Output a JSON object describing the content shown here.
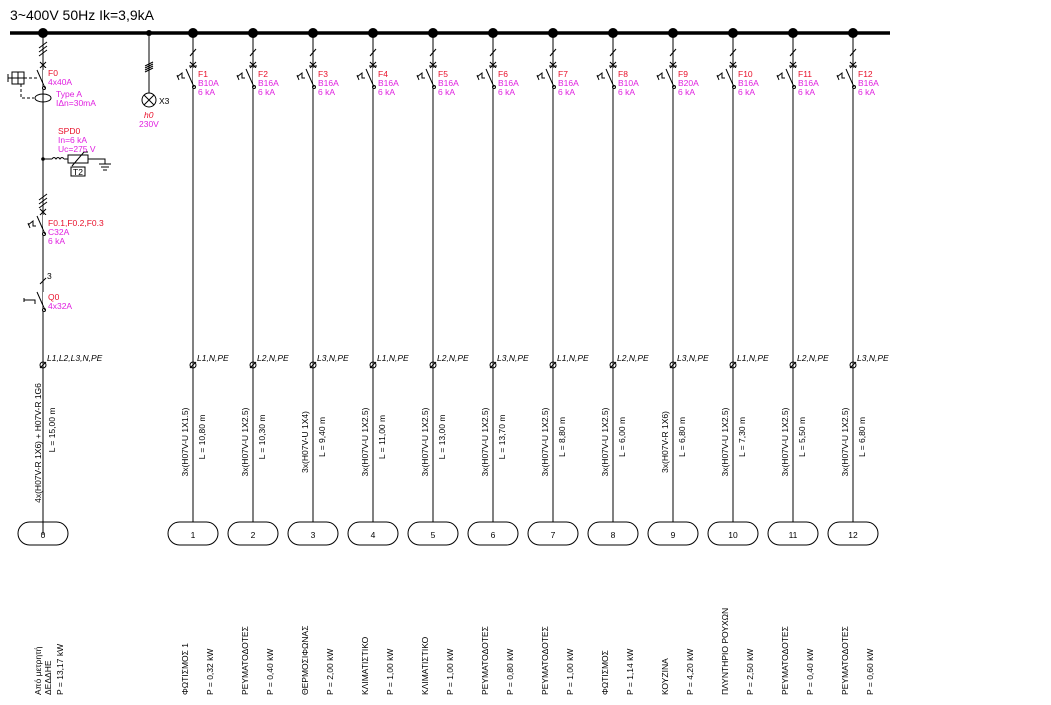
{
  "title": "3~400V 50Hz Ik=3,9kA",
  "colors": {
    "label_red": "#e8102a",
    "rating_magenta": "#e020e0",
    "line": "#000000"
  },
  "main_feeder": {
    "breaker_id": "F0",
    "breaker_rating": "4x40A",
    "rcd_type": "Type A",
    "rcd_sensitivity": "IΔn=30mA",
    "spd_id": "SPD0",
    "spd_in": "In=6 kA",
    "spd_uc": "Uc=275 V",
    "spd_class": "T2",
    "mcb_ids": "F0.1,F0.2,F0.3",
    "mcb_rating": "C32A",
    "mcb_ik": "6 kA",
    "poles": "3",
    "switch_id": "Q0",
    "switch_rating": "4x32A",
    "phases": "L1,L2,L3,N,PE",
    "cable": "4x(H07V-R 1X6) + H07V-R 1G6",
    "length": "L = 15,00 m",
    "number": "0",
    "description": [
      "Από μετρητή",
      "ΔΕΔΔΗΕ",
      "P = 13,17 kW"
    ]
  },
  "indicator": {
    "ref": "X3",
    "id": "h0",
    "voltage": "230V"
  },
  "circuits": [
    {
      "id": "F1",
      "rating": "B10A",
      "ik": "6 kA",
      "phases": "L1,N,PE",
      "cable": "3x(H07V-U 1X1.5)",
      "length": "L = 10,80 m",
      "number": "1",
      "description": "ΦΩΤΙΣΜΟΣ 1",
      "power": "P = 0,32 kW"
    },
    {
      "id": "F2",
      "rating": "B16A",
      "ik": "6 kA",
      "phases": "L2,N,PE",
      "cable": "3x(H07V-U 1X2.5)",
      "length": "L = 10,30 m",
      "number": "2",
      "description": "ΡΕΥΜΑΤΟΔΟΤΕΣ",
      "power": "P = 0,40 kW"
    },
    {
      "id": "F3",
      "rating": "B16A",
      "ik": "6 kA",
      "phases": "L3,N,PE",
      "cable": "3x(H07V-U 1X4)",
      "length": "L = 9,40 m",
      "number": "3",
      "description": "ΘΕΡΜΟΣΙΦΩΝΑΣ",
      "power": "P = 2,00 kW"
    },
    {
      "id": "F4",
      "rating": "B16A",
      "ik": "6 kA",
      "phases": "L1,N,PE",
      "cable": "3x(H07V-U 1X2.5)",
      "length": "L = 11,00 m",
      "number": "4",
      "description": "ΚΛΙΜΑΤΙΣΤΙΚΟ",
      "power": "P = 1,00 kW"
    },
    {
      "id": "F5",
      "rating": "B16A",
      "ik": "6 kA",
      "phases": "L2,N,PE",
      "cable": "3x(H07V-U 1X2.5)",
      "length": "L = 13,00 m",
      "number": "5",
      "description": "ΚΛΙΜΑΤΙΣΤΙΚΟ",
      "power": "P = 1,00 kW"
    },
    {
      "id": "F6",
      "rating": "B16A",
      "ik": "6 kA",
      "phases": "L3,N,PE",
      "cable": "3x(H07V-U 1X2.5)",
      "length": "L = 13,70 m",
      "number": "6",
      "description": "ΡΕΥΜΑΤΟΔΟΤΕΣ",
      "power": "P = 0,80 kW"
    },
    {
      "id": "F7",
      "rating": "B16A",
      "ik": "6 kA",
      "phases": "L1,N,PE",
      "cable": "3x(H07V-U 1X2.5)",
      "length": "L = 8,80 m",
      "number": "7",
      "description": "ΡΕΥΜΑΤΟΔΟΤΕΣ",
      "power": "P = 1,00 kW"
    },
    {
      "id": "F8",
      "rating": "B10A",
      "ik": "6 kA",
      "phases": "L2,N,PE",
      "cable": "3x(H07V-U 1X2.5)",
      "length": "L = 6,00 m",
      "number": "8",
      "description": "ΦΩΤΙΣΜΟΣ",
      "power": "P = 1,14 kW"
    },
    {
      "id": "F9",
      "rating": "B20A",
      "ik": "6 kA",
      "phases": "L3,N,PE",
      "cable": "3x(H07V-R 1X6)",
      "length": "L = 6,80 m",
      "number": "9",
      "description": "ΚΟΥΖΙΝΑ",
      "power": "P = 4,20 kW"
    },
    {
      "id": "F10",
      "rating": "B16A",
      "ik": "6 kA",
      "phases": "L1,N,PE",
      "cable": "3x(H07V-U 1X2.5)",
      "length": "L = 7,30 m",
      "number": "10",
      "description": "ΠΛΥΝΤΗΡΙΟ ΡΟΥΧΩΝ",
      "power": "P = 2,50 kW"
    },
    {
      "id": "F11",
      "rating": "B16A",
      "ik": "6 kA",
      "phases": "L2,N,PE",
      "cable": "3x(H07V-U 1X2.5)",
      "length": "L = 5,50 m",
      "number": "11",
      "description": "ΡΕΥΜΑΤΟΔΟΤΕΣ",
      "power": "P = 0,40 kW"
    },
    {
      "id": "F12",
      "rating": "B16A",
      "ik": "6 kA",
      "phases": "L3,N,PE",
      "cable": "3x(H07V-U 1X2.5)",
      "length": "L = 6,80 m",
      "number": "12",
      "description": "ΡΕΥΜΑΤΟΔΟΤΕΣ",
      "power": "P = 0,60 kW"
    }
  ]
}
